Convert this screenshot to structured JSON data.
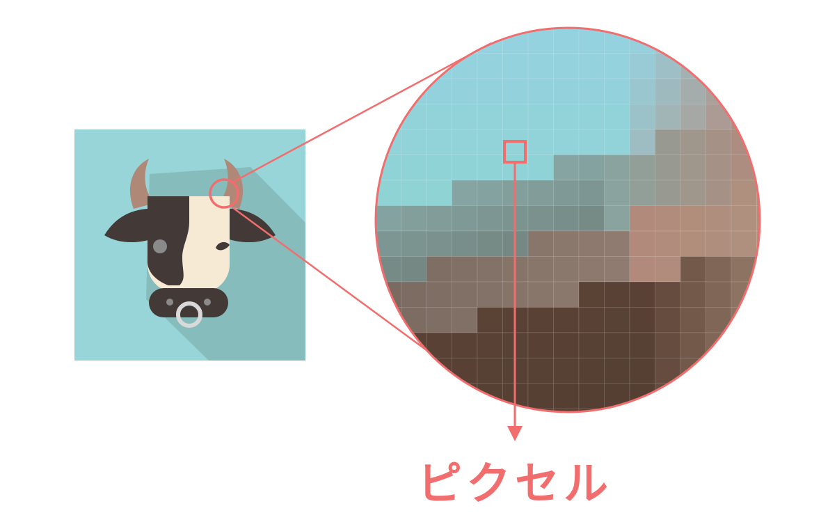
{
  "label": {
    "text": "ピクセル"
  },
  "colors": {
    "accent": "#f26d6d",
    "tile_background": "#97d5d8",
    "shadow": "#87bcbd",
    "horn": "#b08878",
    "hide_dark": "#433a37",
    "hide_light": "#f7ead5",
    "nose_ring": "#d9d9d9",
    "eye": "#8a8a8a"
  },
  "icons": {
    "illustration": "cow-head-icon",
    "ring": "nose-ring-icon"
  },
  "pixel_grid": {
    "columns": 16,
    "rows": 16,
    "palette": {
      "sky": "#95d2df",
      "teal": "#8cd4d0",
      "grey_teal": "#86a6a3",
      "slate": "#6d7a75",
      "taupe": "#7a6a60",
      "brown": "#5e4538",
      "dark_brown": "#4d3a2e",
      "rose": "#b3887a",
      "tan": "#ad9480",
      "mauve": "#9d877b"
    }
  }
}
